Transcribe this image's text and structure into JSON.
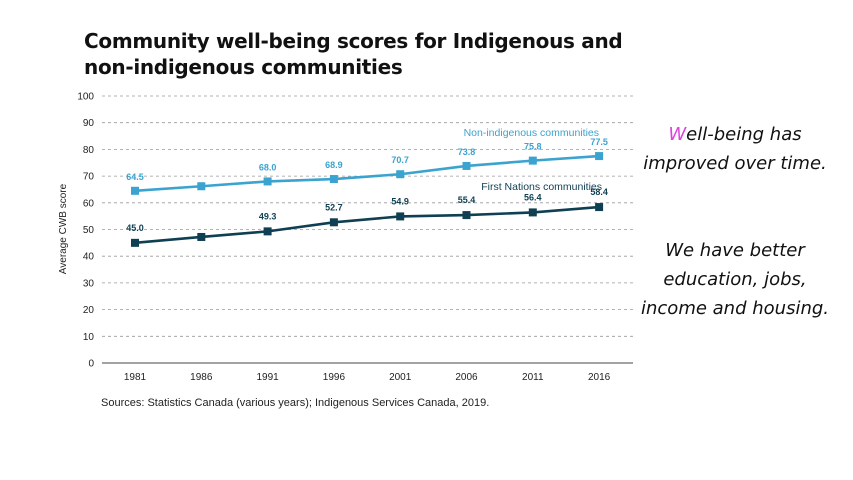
{
  "title": "Community well-being scores for Indigenous and non-indigenous communities",
  "source": "Sources: Statistics Canada (various years); Indigenous Services Canada, 2019.",
  "notes": {
    "note1_first_letter": "W",
    "note1_rest": "ell-being has improved over time.",
    "note2": "We have better education, jobs, income and housing."
  },
  "colors": {
    "non_indigenous": "#3ba3cf",
    "first_nations": "#0f3f52",
    "accent_letter": "#e040e0"
  },
  "chart_data": {
    "type": "line",
    "x": [
      "1981",
      "1986",
      "1991",
      "1996",
      "2001",
      "2006",
      "2011",
      "2016"
    ],
    "ylabel": "Average CWB score",
    "xlabel": "",
    "ylim": [
      0,
      100
    ],
    "yticks": [
      0,
      10,
      20,
      30,
      40,
      50,
      60,
      70,
      80,
      90,
      100
    ],
    "grid": "horizontal dashed",
    "series": [
      {
        "name": "Non-indigenous communities",
        "color": "#3ba3cf",
        "values": [
          64.5,
          66.2,
          68.0,
          68.9,
          70.7,
          73.8,
          75.8,
          77.5
        ],
        "labels": [
          "64.5",
          "",
          "68.0",
          "68.9",
          "70.7",
          "73.8",
          "75.8",
          "77.5"
        ]
      },
      {
        "name": "First Nations communities",
        "color": "#0f3f52",
        "values": [
          45.0,
          47.2,
          49.3,
          52.7,
          54.9,
          55.4,
          56.4,
          58.4
        ],
        "labels": [
          "45.0",
          "",
          "49.3",
          "52.7",
          "54.9",
          "55.4",
          "56.4",
          "58.4"
        ]
      }
    ]
  }
}
